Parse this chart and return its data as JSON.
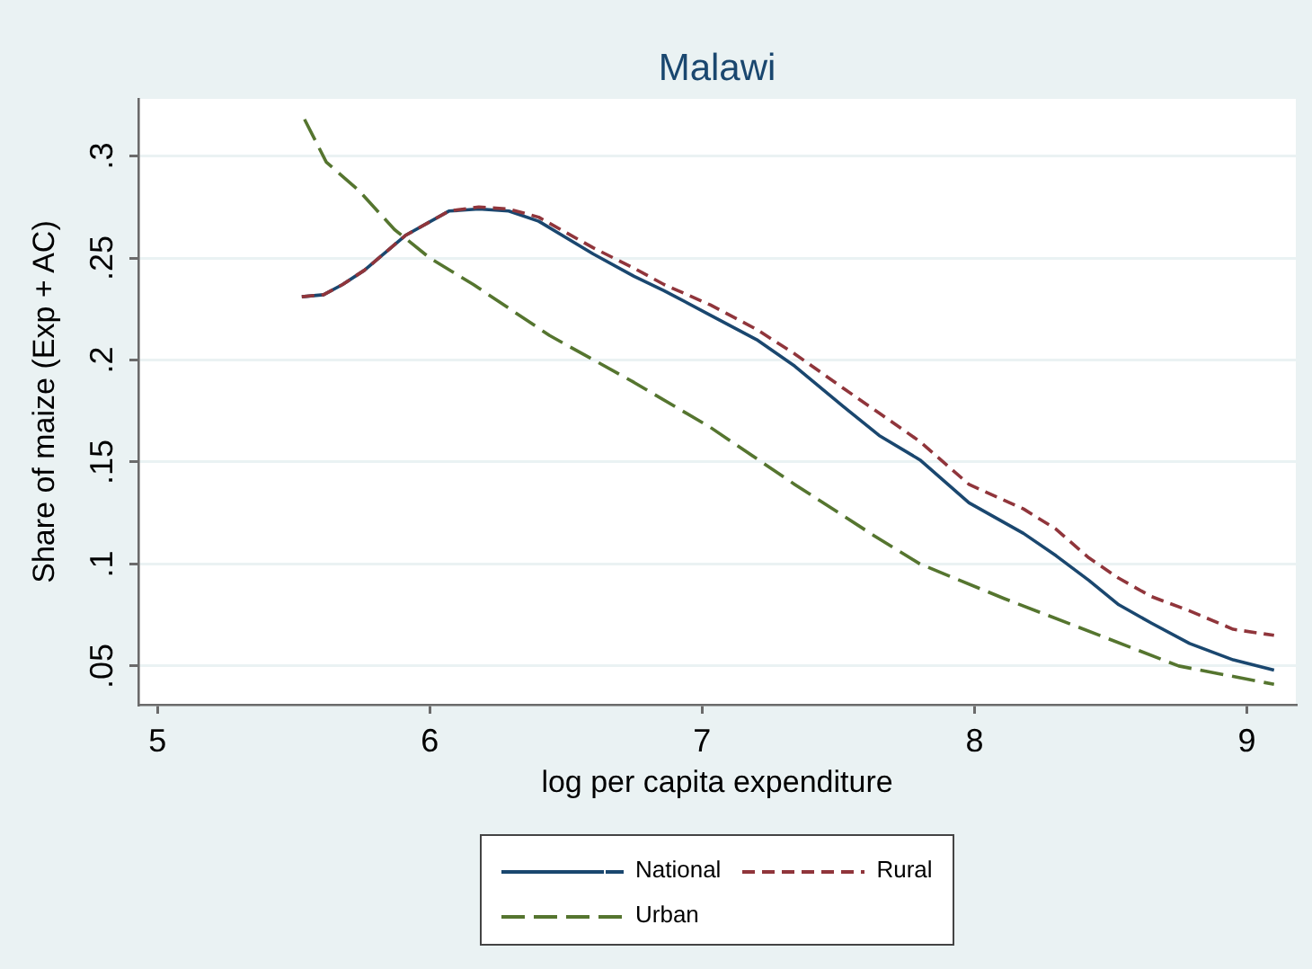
{
  "chart_data": {
    "type": "line",
    "title": "Malawi",
    "xlabel": "log per capita expenditure",
    "ylabel": "Share of maize (Exp + AC)",
    "xlim": [
      4.93,
      9.18
    ],
    "xticks": [
      5,
      6,
      7,
      8,
      9
    ],
    "ylim": [
      0.031,
      0.328
    ],
    "yticks": [
      {
        "value": 0.05,
        "label": ".05"
      },
      {
        "value": 0.1,
        "label": ".1"
      },
      {
        "value": 0.15,
        "label": ".15"
      },
      {
        "value": 0.2,
        "label": ".2"
      },
      {
        "value": 0.25,
        "label": ".25"
      },
      {
        "value": 0.3,
        "label": ".3"
      }
    ],
    "grid": "y",
    "legend": "bottom",
    "marker": "none",
    "series": [
      {
        "name": "National",
        "color": "#1a476f",
        "line_style": "solid",
        "x": [
          5.53,
          5.61,
          5.68,
          5.76,
          5.91,
          6.07,
          6.18,
          6.29,
          6.4,
          6.6,
          6.75,
          6.86,
          7.03,
          7.2,
          7.34,
          7.52,
          7.65,
          7.8,
          7.98,
          8.18,
          8.3,
          8.42,
          8.53,
          8.65,
          8.79,
          8.95,
          9.1
        ],
        "values": [
          0.231,
          0.232,
          0.237,
          0.244,
          0.261,
          0.273,
          0.274,
          0.273,
          0.268,
          0.252,
          0.241,
          0.234,
          0.222,
          0.21,
          0.197,
          0.177,
          0.163,
          0.151,
          0.13,
          0.115,
          0.104,
          0.092,
          0.08,
          0.071,
          0.061,
          0.053,
          0.048
        ]
      },
      {
        "name": "Rural",
        "color": "#90353b",
        "line_style": "dashed",
        "x": [
          5.53,
          5.61,
          5.68,
          5.76,
          5.91,
          6.07,
          6.18,
          6.29,
          6.4,
          6.6,
          6.75,
          6.86,
          7.03,
          7.2,
          7.34,
          7.52,
          7.65,
          7.8,
          7.98,
          8.18,
          8.3,
          8.42,
          8.53,
          8.65,
          8.79,
          8.95,
          9.1
        ],
        "values": [
          0.231,
          0.232,
          0.237,
          0.244,
          0.261,
          0.273,
          0.275,
          0.274,
          0.27,
          0.255,
          0.245,
          0.237,
          0.227,
          0.215,
          0.203,
          0.186,
          0.174,
          0.16,
          0.139,
          0.127,
          0.117,
          0.103,
          0.093,
          0.084,
          0.077,
          0.068,
          0.065
        ]
      },
      {
        "name": "Urban",
        "color": "#55752f",
        "line_style": "dashed",
        "x": [
          5.54,
          5.62,
          5.74,
          5.87,
          6.0,
          6.16,
          6.44,
          6.75,
          7.03,
          7.34,
          7.63,
          7.8,
          8.11,
          8.46,
          8.75,
          9.1
        ],
        "values": [
          0.318,
          0.297,
          0.283,
          0.264,
          0.25,
          0.237,
          0.212,
          0.189,
          0.167,
          0.139,
          0.114,
          0.1,
          0.083,
          0.065,
          0.05,
          0.041
        ]
      }
    ]
  }
}
